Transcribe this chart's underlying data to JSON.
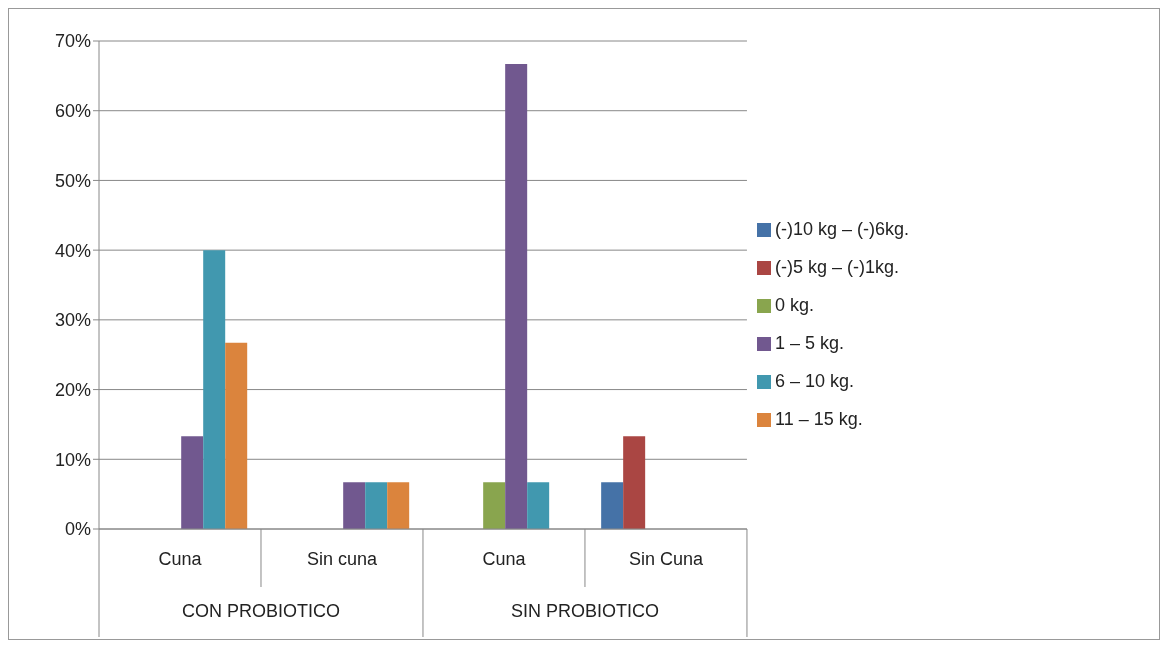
{
  "chart_data": {
    "type": "bar",
    "categories": [
      "Cuna",
      "Sin cuna",
      "Cuna",
      "Sin Cuna"
    ],
    "annotations": [
      "CON PROBIOTICO",
      "SIN PROBIOTICO"
    ],
    "series": [
      {
        "name": "(-)10 kg – (-)6kg.",
        "color": "#4572a7",
        "values": [
          0,
          0,
          0,
          6.7
        ]
      },
      {
        "name": "(-)5 kg – (-)1kg.",
        "color": "#aa4643",
        "values": [
          0,
          0,
          0,
          13.3
        ]
      },
      {
        "name": "0 kg.",
        "color": "#89a54e",
        "values": [
          0,
          0,
          6.7,
          0
        ]
      },
      {
        "name": "1 – 5 kg.",
        "color": "#71588f",
        "values": [
          13.3,
          6.7,
          66.7,
          0
        ]
      },
      {
        "name": "6 – 10 kg.",
        "color": "#4198af",
        "values": [
          40,
          6.7,
          6.7,
          0
        ]
      },
      {
        "name": "11 – 15 kg.",
        "color": "#db843d",
        "values": [
          26.7,
          6.7,
          0,
          0
        ]
      }
    ],
    "ylim": [
      0,
      70
    ],
    "yticks": [
      {
        "value": 0,
        "label": "0%"
      },
      {
        "value": 10,
        "label": "10%"
      },
      {
        "value": 20,
        "label": "20%"
      },
      {
        "value": 30,
        "label": "30%"
      },
      {
        "value": 40,
        "label": "40%"
      },
      {
        "value": 50,
        "label": "50%"
      },
      {
        "value": 60,
        "label": "60%"
      },
      {
        "value": 70,
        "label": "70%"
      }
    ],
    "grid": "y",
    "legend": "right"
  }
}
